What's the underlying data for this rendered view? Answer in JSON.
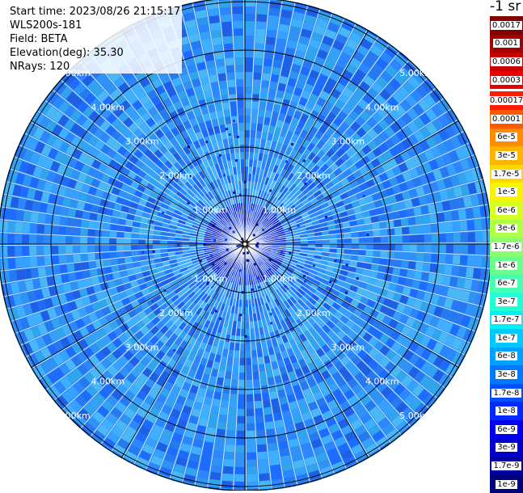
{
  "header": {
    "start_time": "Start time: 2023/08/26 21:15:17",
    "instrument": "WLS200s-181",
    "field": "Field: BETA",
    "elevation": "Elevation(deg): 35.30",
    "nrays": "NRays: 120"
  },
  "colorbar": {
    "unit": "-1 sr",
    "levels": [
      {
        "label": "0.0017",
        "color": "#7f0000"
      },
      {
        "label": "0.001",
        "color": "#a50000"
      },
      {
        "label": "0.0006",
        "color": "#c80000"
      },
      {
        "label": "0.0003",
        "color": "#e80000"
      },
      {
        "label": "0.00017",
        "color": "#ff1a00"
      },
      {
        "label": "0.0001",
        "color": "#ff5a00"
      },
      {
        "label": "6e-5",
        "color": "#ff8c00"
      },
      {
        "label": "3e-5",
        "color": "#ffb400"
      },
      {
        "label": "1.7e-5",
        "color": "#ffd800"
      },
      {
        "label": "1e-5",
        "color": "#f5f500"
      },
      {
        "label": "6e-6",
        "color": "#d4ff22"
      },
      {
        "label": "3e-6",
        "color": "#b0ff47"
      },
      {
        "label": "1.7e-6",
        "color": "#8cff6a"
      },
      {
        "label": "1e-6",
        "color": "#6aff8c"
      },
      {
        "label": "6e-7",
        "color": "#47ffb0"
      },
      {
        "label": "3e-7",
        "color": "#22ffd4"
      },
      {
        "label": "1.7e-7",
        "color": "#00f0f8"
      },
      {
        "label": "1e-7",
        "color": "#00c8ff"
      },
      {
        "label": "6e-8",
        "color": "#00a0ff"
      },
      {
        "label": "3e-8",
        "color": "#0078ff"
      },
      {
        "label": "1.7e-8",
        "color": "#0050ff"
      },
      {
        "label": "1e-8",
        "color": "#0028ff"
      },
      {
        "label": "6e-9",
        "color": "#0000f0"
      },
      {
        "label": "3e-9",
        "color": "#0000c8"
      },
      {
        "label": "1.7e-9",
        "color": "#0000a0"
      },
      {
        "label": "1e-9",
        "color": "#000078"
      }
    ],
    "top_group_size": 4
  },
  "chart_data": {
    "type": "heatmap",
    "projection": "polar-ppi",
    "field": "BETA",
    "nrays": 120,
    "range_rings_km": [
      1,
      2,
      3,
      4,
      5
    ],
    "range_ring_labels": [
      "1.00km",
      "2.00km",
      "3.00km",
      "4.00km",
      "5.00km"
    ],
    "max_range_km": 5.1,
    "value_range": [
      1e-09,
      0.0017
    ],
    "dominant_value": 1e-07,
    "near_range_value": 3e-09
  }
}
